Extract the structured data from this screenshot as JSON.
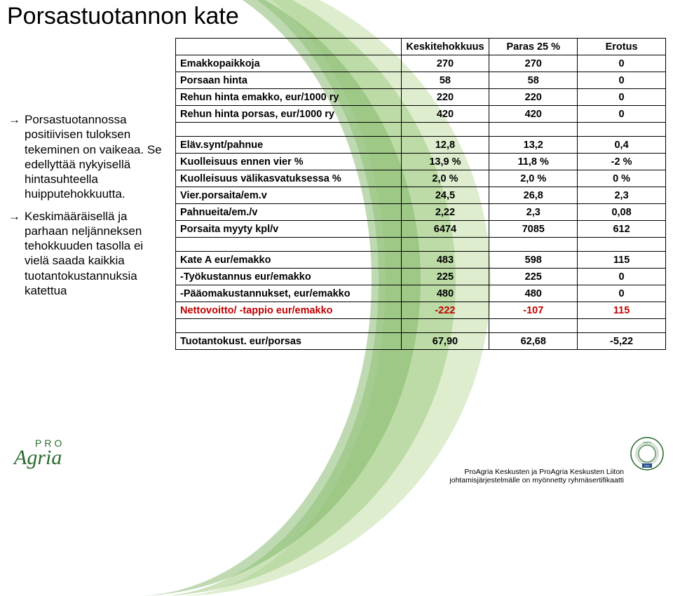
{
  "title": "Porsastuotannon kate",
  "bullets": [
    "Porsastuotannossa positiivisen tuloksen tekeminen on vaikeaa. Se edellyttää nykyisellä hintasuhteella huipputehokkuutta.",
    "Keskimääräisellä ja parhaan neljänneksen tehokkuuden tasolla ei vielä saada kaikkia tuotantokustannuksia katettua"
  ],
  "table": {
    "headers": [
      "",
      "Keskitehokkuus",
      "Paras 25 %",
      "Erotus"
    ],
    "rows": [
      {
        "label": "Emakkopaikkoja",
        "c1": "270",
        "c2": "270",
        "c3": "0",
        "bold": true,
        "tb": true,
        "bb": true
      },
      {
        "label": "Porsaan hinta",
        "c1": "58",
        "c2": "58",
        "c3": "0",
        "bold": true,
        "bb": true
      },
      {
        "label": "Rehun hinta emakko, eur/1000 ry",
        "c1": "220",
        "c2": "220",
        "c3": "0",
        "bold": true,
        "bb": true
      },
      {
        "label": "Rehun hinta porsas, eur/1000 ry",
        "c1": "420",
        "c2": "420",
        "c3": "0",
        "bold": true,
        "bb": true
      },
      {
        "spacer": true,
        "bb": true
      },
      {
        "label": "Eläv.synt/pahnue",
        "c1": "12,8",
        "c2": "13,2",
        "c3": "0,4",
        "bold": true,
        "bb": true
      },
      {
        "label": "Kuolleisuus ennen vier %",
        "c1": "13,9 %",
        "c2": "11,8 %",
        "c3": "-2 %",
        "bold": true,
        "bb": true
      },
      {
        "label": "Kuolleisuus välikasvatuksessa %",
        "c1": "2,0 %",
        "c2": "2,0 %",
        "c3": "0 %",
        "bold": true,
        "bb": true
      },
      {
        "label": "Vier.porsaita/em.v",
        "c1": "24,5",
        "c2": "26,8",
        "c3": "2,3",
        "bold": true,
        "bb": true
      },
      {
        "label": "Pahnueita/em./v",
        "c1": "2,22",
        "c2": "2,3",
        "c3": "0,08",
        "bold": true,
        "bb": true
      },
      {
        "label": "Porsaita myyty kpl/v",
        "c1": "6474",
        "c2": "7085",
        "c3": "612",
        "bold": true,
        "bb": true
      },
      {
        "spacer": true,
        "bb": true
      },
      {
        "label": "Kate A eur/emakko",
        "c1": "483",
        "c2": "598",
        "c3": "115",
        "bold": true,
        "bb": true
      },
      {
        "label": " -Työkustannus eur/emakko",
        "c1": "225",
        "c2": "225",
        "c3": "0",
        "bold": true,
        "bb": true
      },
      {
        "label": " -Pääomakustannukset, eur/emakko",
        "c1": "480",
        "c2": "480",
        "c3": "0",
        "bold": true,
        "bb": true
      },
      {
        "label": "Nettovoitto/ -tappio eur/emakko",
        "c1": "-222",
        "c2": "-107",
        "c3": "115",
        "red": true,
        "bb": true
      },
      {
        "spacer": true,
        "bb": true
      },
      {
        "label": "Tuotantokust. eur/porsas",
        "c1": "67,90",
        "c2": "62,68",
        "c3": "-5,22",
        "bold": true,
        "bb": true
      }
    ]
  },
  "logo": {
    "top": "PRO",
    "main": "Agria"
  },
  "footer": {
    "line1": "ProAgria Keskusten ja ProAgria Keskusten Liiton",
    "line2": "johtamisjärjestelmälle on myönnetty ryhmäsertifikaatti"
  },
  "colors": {
    "swoosh_light": "#d4e8c2",
    "swoosh_mid": "#a8cf8e",
    "swoosh_dark": "#7fb665",
    "green_text": "#2a6b2e",
    "red_text": "#c00000"
  }
}
